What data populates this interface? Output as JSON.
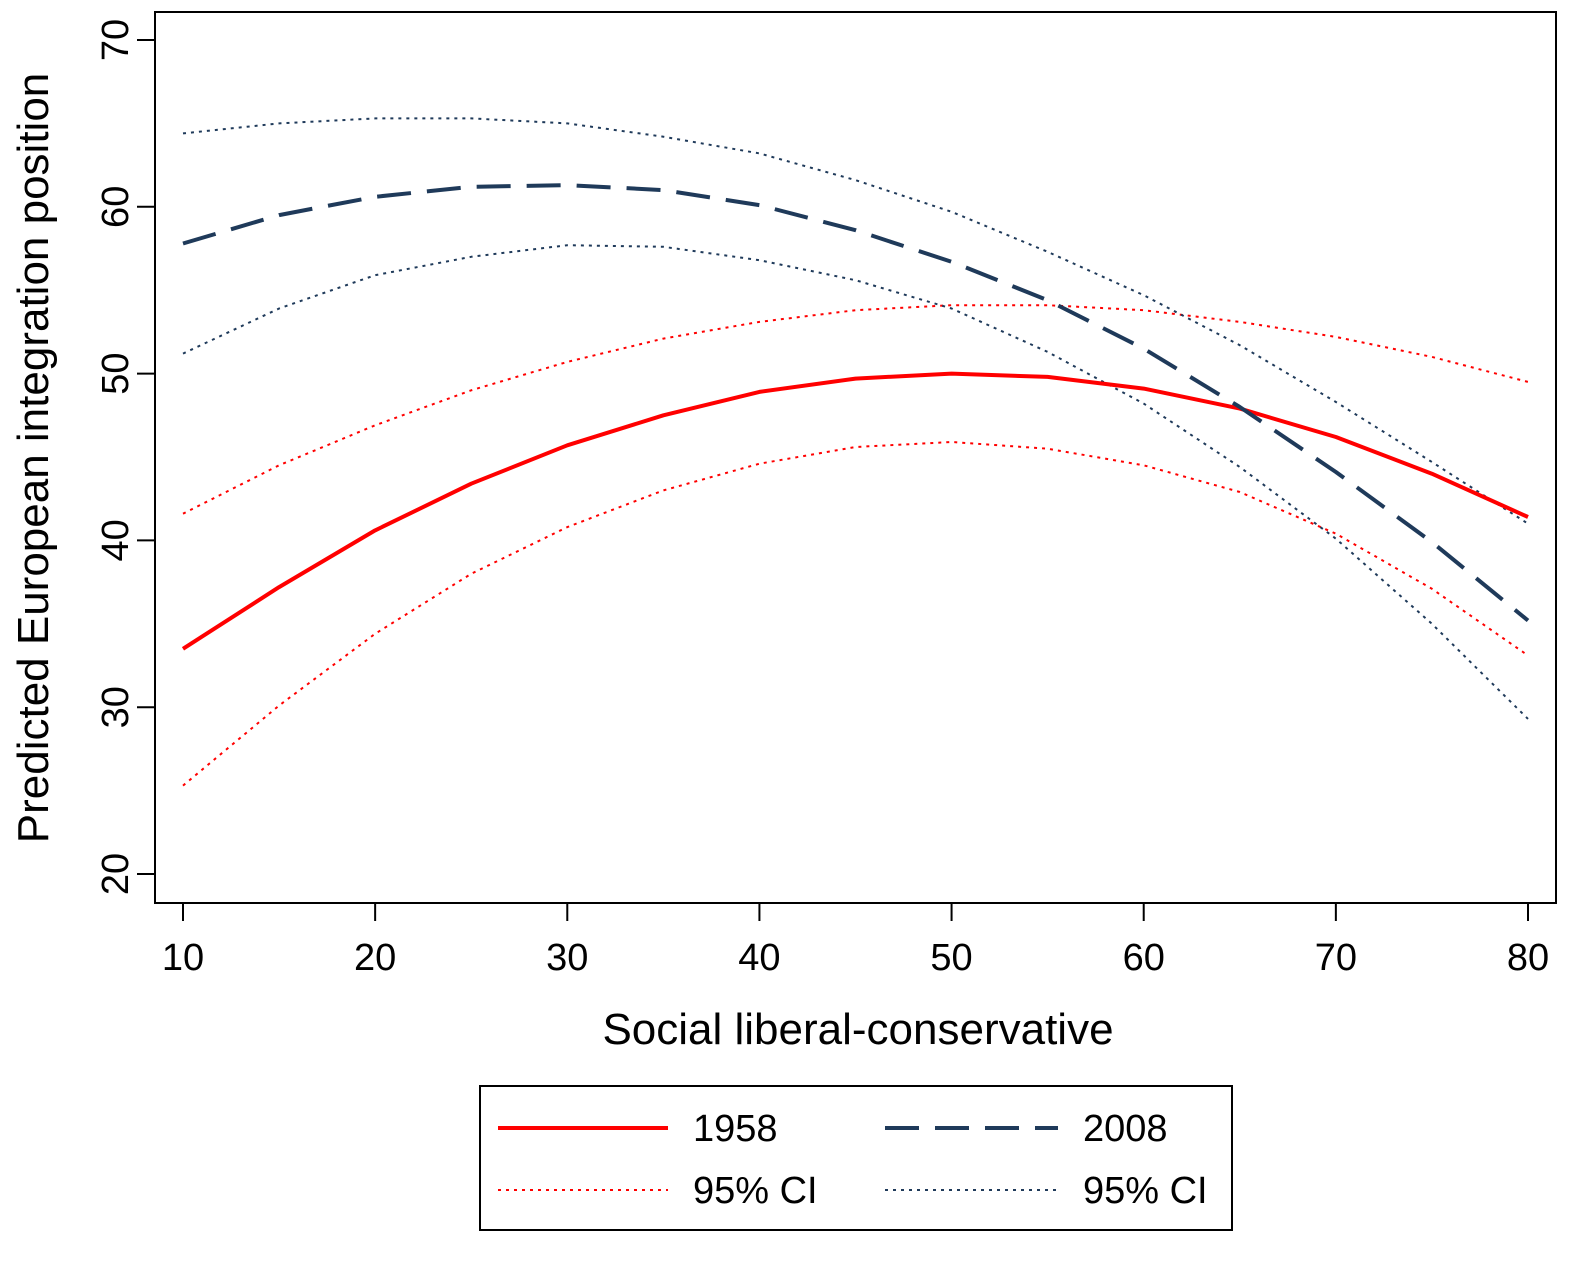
{
  "chart_data": {
    "type": "line",
    "title": "",
    "xlabel": "Social liberal-conservative",
    "ylabel": "Predicted European integration position",
    "xlim": [
      10,
      80
    ],
    "ylim": [
      20,
      70
    ],
    "x_ticks": [
      10,
      20,
      30,
      40,
      50,
      60,
      70,
      80
    ],
    "y_ticks": [
      20,
      30,
      40,
      50,
      60,
      70
    ],
    "grid": false,
    "legend_position": "bottom",
    "x": [
      10,
      15,
      20,
      25,
      30,
      35,
      40,
      45,
      50,
      55,
      60,
      65,
      70,
      75,
      80
    ],
    "series": [
      {
        "name": "1958",
        "style": "solid",
        "color": "#ff0000",
        "values": [
          33.5,
          37.2,
          40.6,
          43.4,
          45.7,
          47.5,
          48.9,
          49.7,
          50.0,
          49.8,
          49.1,
          47.9,
          46.2,
          44.0,
          41.4
        ]
      },
      {
        "name": "2008",
        "style": "dashed",
        "color": "#1f3a5a",
        "values": [
          57.8,
          59.5,
          60.6,
          61.2,
          61.3,
          61.0,
          60.1,
          58.6,
          56.7,
          54.4,
          51.5,
          48.0,
          44.1,
          39.9,
          35.2
        ]
      },
      {
        "name": "95% CI",
        "style": "dotted",
        "color": "#ff0000",
        "values": [
          25.3,
          30.1,
          34.4,
          38.0,
          40.8,
          43.0,
          44.6,
          45.6,
          45.9,
          45.5,
          44.5,
          42.9,
          40.4,
          37.1,
          33.1
        ]
      },
      {
        "name": "",
        "style": "dotted",
        "color": "#ff0000",
        "values": [
          41.6,
          44.5,
          46.9,
          49.0,
          50.7,
          52.1,
          53.1,
          53.8,
          54.1,
          54.1,
          53.8,
          53.1,
          52.2,
          51.0,
          49.5
        ]
      },
      {
        "name": "95% CI",
        "style": "dotted",
        "color": "#1f3a5a",
        "values": [
          51.2,
          53.9,
          55.9,
          57.0,
          57.7,
          57.6,
          56.8,
          55.6,
          53.9,
          51.3,
          48.2,
          44.4,
          40.1,
          35.0,
          29.3
        ]
      },
      {
        "name": "",
        "style": "dotted",
        "color": "#1f3a5a",
        "values": [
          64.4,
          65.0,
          65.3,
          65.3,
          65.0,
          64.2,
          63.2,
          61.6,
          59.7,
          57.3,
          54.7,
          51.7,
          48.3,
          44.7,
          41.0
        ]
      }
    ],
    "legend": [
      {
        "label": "1958",
        "style": "solid",
        "color": "#ff0000"
      },
      {
        "label": "2008",
        "style": "dashed",
        "color": "#1f3a5a"
      },
      {
        "label": "95% CI",
        "style": "dotted",
        "color": "#ff0000"
      },
      {
        "label": "95% CI",
        "style": "dotted",
        "color": "#1f3a5a"
      }
    ]
  }
}
